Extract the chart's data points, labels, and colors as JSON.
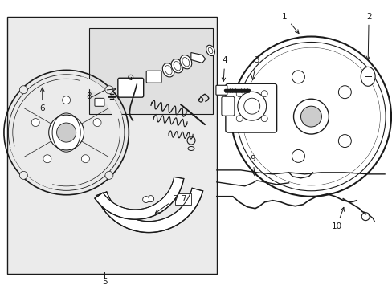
{
  "bg_color": "#ffffff",
  "fig_width": 4.89,
  "fig_height": 3.6,
  "dpi": 100,
  "line_color": "#1a1a1a",
  "label_fontsize": 7.5,
  "box_bg": "#e8e8e8",
  "inner_box_bg": "#e0e0e0"
}
